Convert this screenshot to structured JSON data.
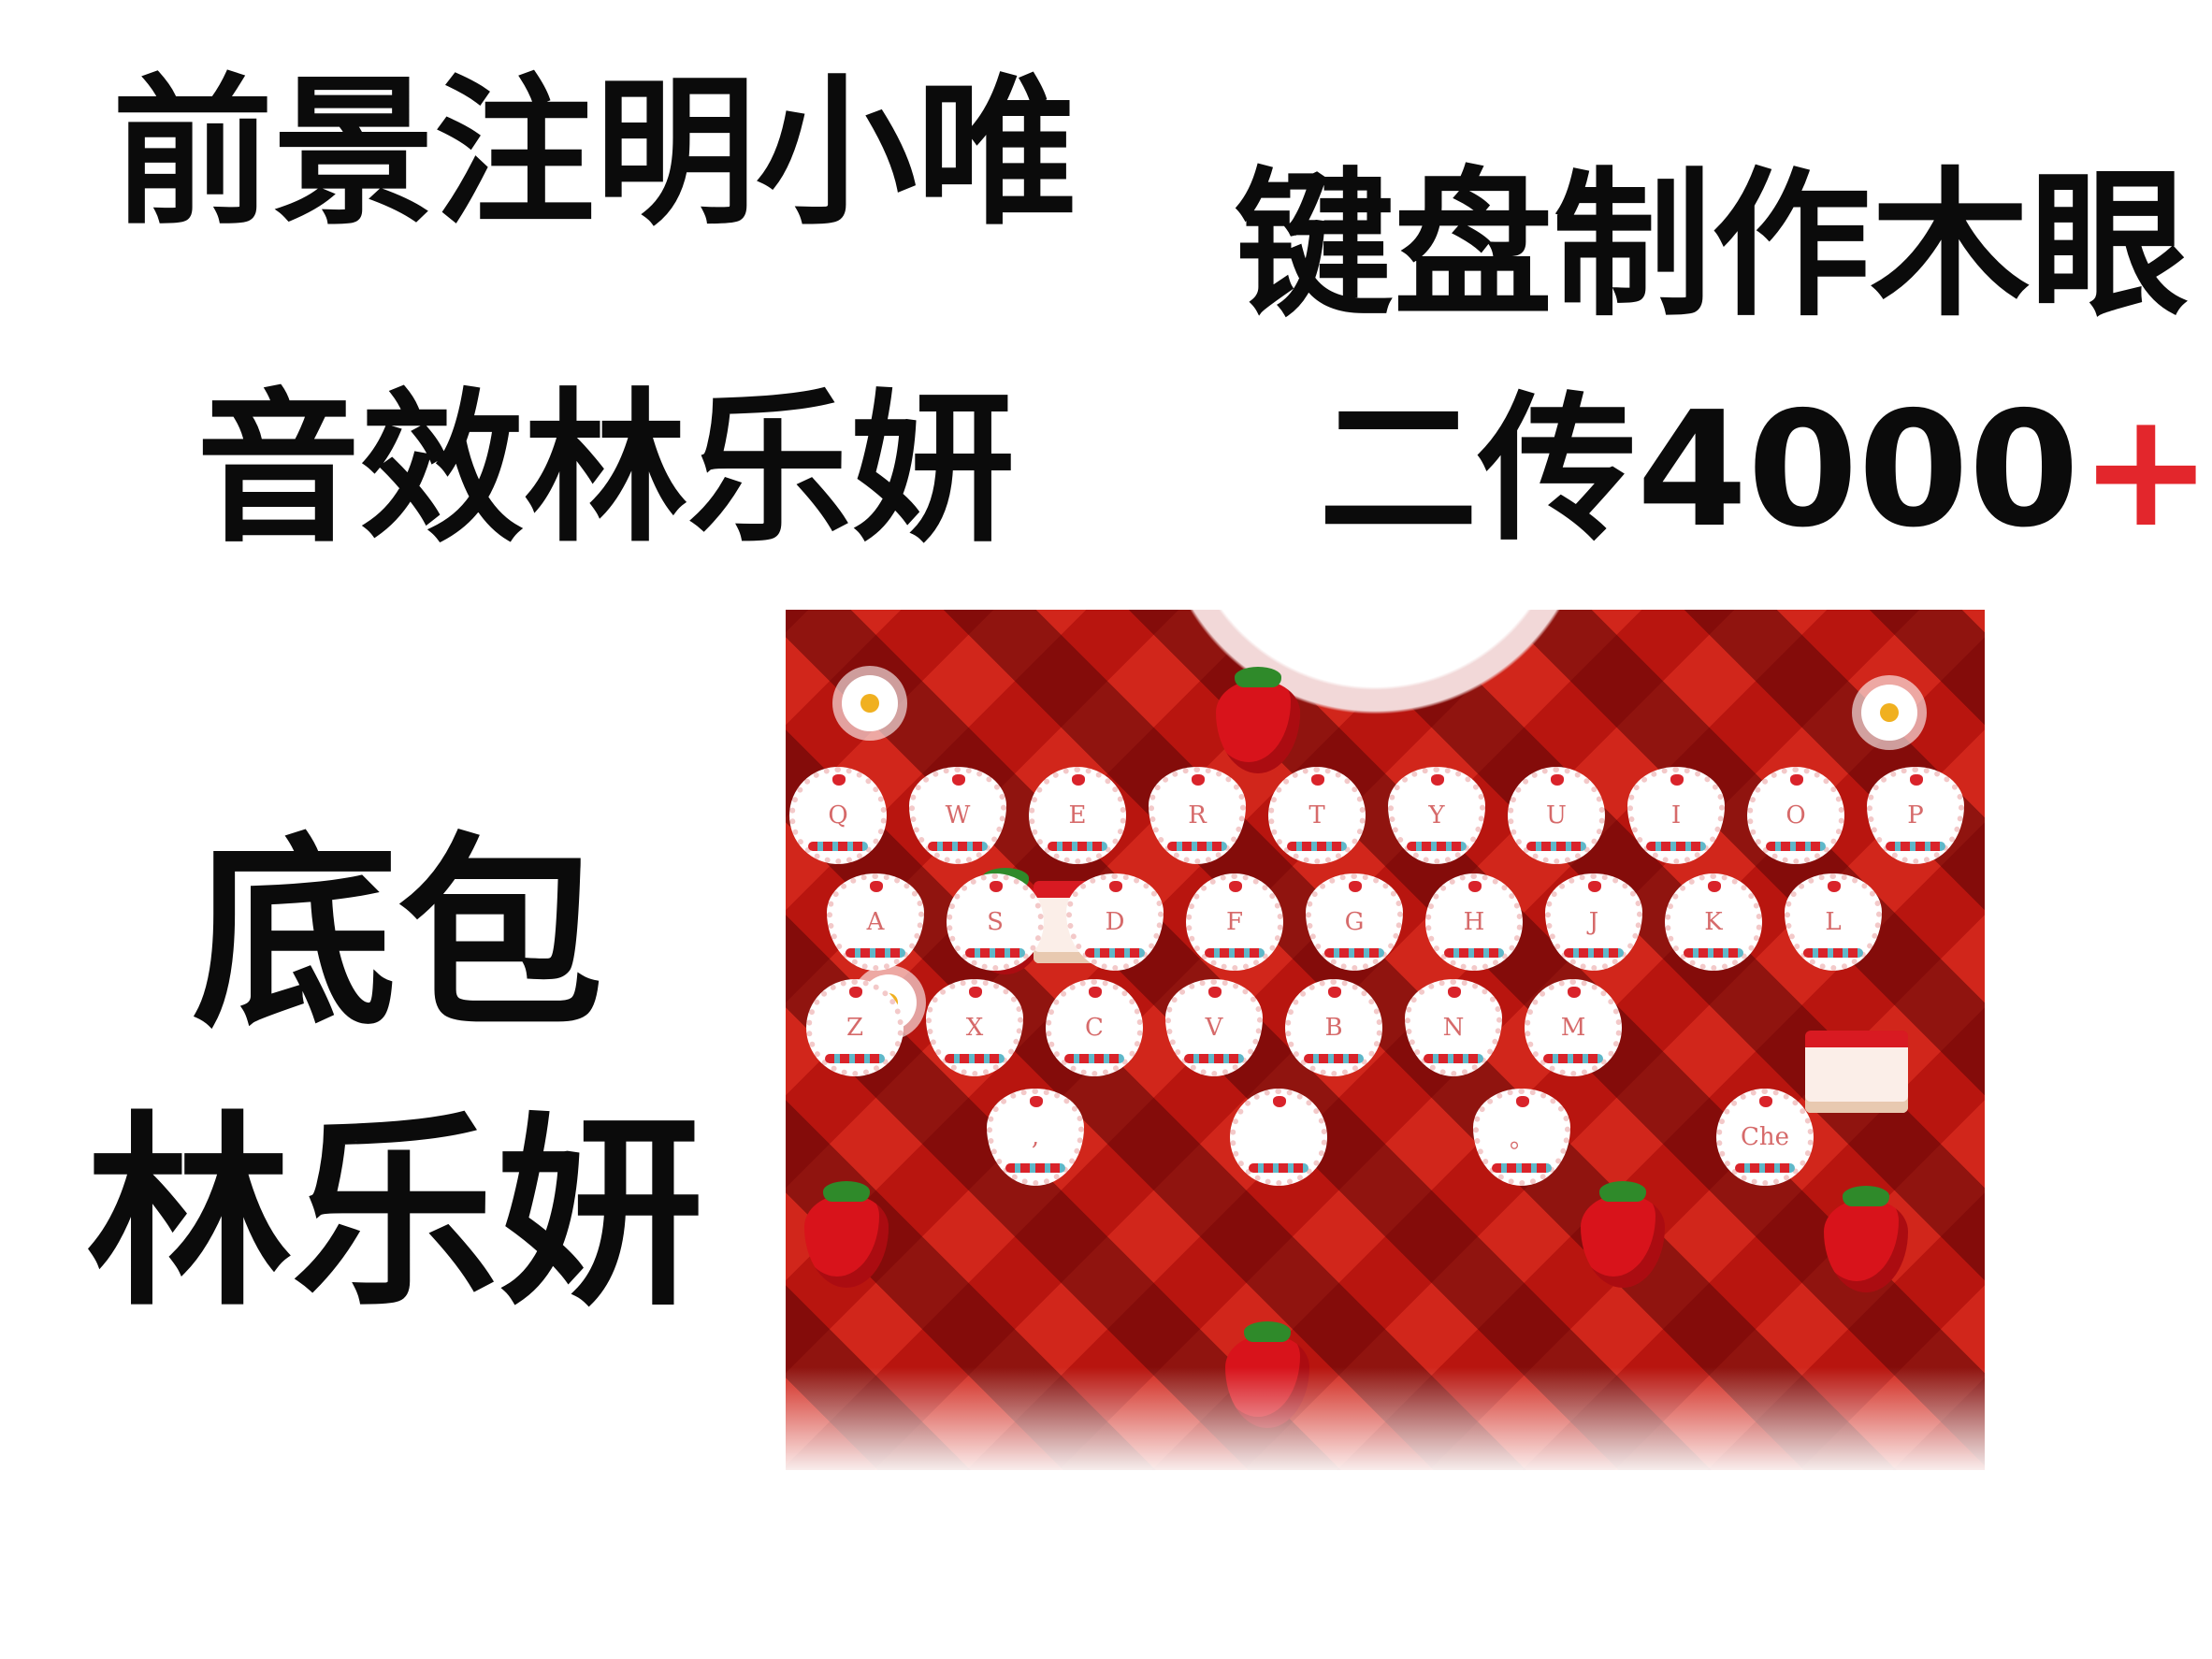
{
  "credits": {
    "foreground": "前景注明小唯",
    "keyboard_maker": "键盘制作木眼",
    "sound_effect": "音效林乐妍",
    "repost_text": "二传4000",
    "repost_plus": "+",
    "bottom_pack_label": "底包",
    "bottom_pack_name": "林乐妍"
  },
  "keyboard": {
    "row1": [
      "Q",
      "W",
      "E",
      "R",
      "T",
      "Y",
      "U",
      "I",
      "O",
      "P"
    ],
    "row2": [
      "A",
      "S",
      "D",
      "F",
      "G",
      "H",
      "J",
      "K",
      "L"
    ],
    "row3": [
      "Z",
      "X",
      "C",
      "V",
      "B",
      "N",
      "M"
    ],
    "row4": [
      ",",
      "",
      "。",
      "Che"
    ],
    "colors": {
      "background": "#b8150f",
      "accent": "#d9232a",
      "key_face": "#ffffff"
    }
  }
}
